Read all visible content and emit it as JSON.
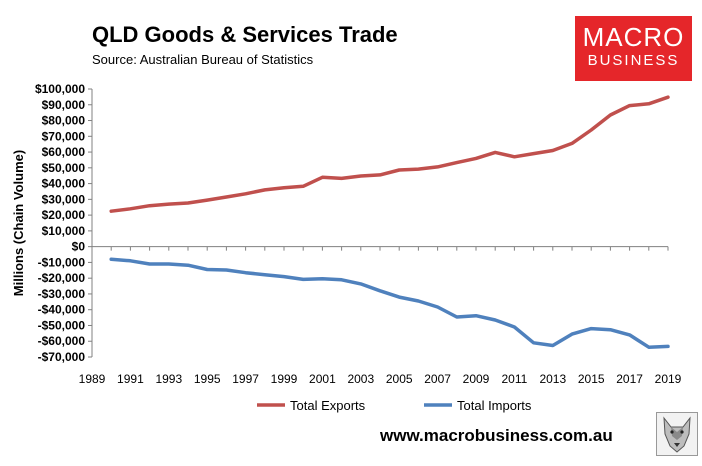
{
  "header": {
    "title": "QLD Goods & Services Trade",
    "source": "Source:  Australian Bureau of Statistics"
  },
  "logo": {
    "line1": "MACRO",
    "line2": "BUSINESS"
  },
  "footer": {
    "url": "www.macrobusiness.com.au"
  },
  "colors": {
    "exports": "#c0504d",
    "imports": "#4f81bd",
    "brand": "#e5262a"
  },
  "chart_data": {
    "type": "line",
    "title": "QLD Goods & Services Trade",
    "xlabel": "",
    "ylabel": "Millions (Chain Volume)",
    "xlim": [
      1989,
      2019
    ],
    "ylim": [
      -70000,
      100000
    ],
    "x_ticks": [
      "1989",
      "1991",
      "1993",
      "1995",
      "1997",
      "1999",
      "2001",
      "2003",
      "2005",
      "2007",
      "2009",
      "2011",
      "2013",
      "2015",
      "2017",
      "2019"
    ],
    "y_ticks": [
      {
        "value": 100000,
        "label": "$100,000"
      },
      {
        "value": 90000,
        "label": "$90,000"
      },
      {
        "value": 80000,
        "label": "$80,000"
      },
      {
        "value": 70000,
        "label": "$70,000"
      },
      {
        "value": 60000,
        "label": "$60,000"
      },
      {
        "value": 50000,
        "label": "$50,000"
      },
      {
        "value": 40000,
        "label": "$40,000"
      },
      {
        "value": 30000,
        "label": "$30,000"
      },
      {
        "value": 20000,
        "label": "$20,000"
      },
      {
        "value": 10000,
        "label": "$10,000"
      },
      {
        "value": 0,
        "label": "$0"
      },
      {
        "value": -10000,
        "label": "-$10,000"
      },
      {
        "value": -20000,
        "label": "-$20,000"
      },
      {
        "value": -30000,
        "label": "-$30,000"
      },
      {
        "value": -40000,
        "label": "-$40,000"
      },
      {
        "value": -50000,
        "label": "-$50,000"
      },
      {
        "value": -60000,
        "label": "-$60,000"
      },
      {
        "value": -70000,
        "label": "-$70,000"
      }
    ],
    "x": [
      1990,
      1991,
      1992,
      1993,
      1994,
      1995,
      1996,
      1997,
      1998,
      1999,
      2000,
      2001,
      2002,
      2003,
      2004,
      2005,
      2006,
      2007,
      2008,
      2009,
      2010,
      2011,
      2012,
      2013,
      2014,
      2015,
      2016,
      2017,
      2018,
      2019
    ],
    "series": [
      {
        "name": "Total Exports",
        "color": "#c0504d",
        "values": [
          22500,
          24000,
          26000,
          27000,
          27700,
          29500,
          31500,
          33500,
          36000,
          37300,
          38300,
          44000,
          43300,
          44800,
          45500,
          48600,
          49200,
          50600,
          53300,
          56000,
          59800,
          57000,
          59000,
          61000,
          65500,
          74000,
          83500,
          89500,
          90600,
          94800
        ]
      },
      {
        "name": "Total Imports",
        "color": "#4f81bd",
        "values": [
          -8000,
          -9000,
          -11000,
          -11000,
          -11800,
          -14500,
          -14800,
          -16500,
          -17800,
          -19000,
          -20800,
          -20400,
          -21000,
          -23600,
          -28000,
          -32000,
          -34500,
          -38300,
          -44600,
          -43800,
          -46500,
          -51000,
          -61000,
          -62700,
          -55500,
          -52000,
          -52700,
          -56000,
          -63800,
          -63300
        ]
      }
    ],
    "legend": [
      "Total Exports",
      "Total Imports"
    ],
    "legend_position": "bottom",
    "grid": false
  }
}
